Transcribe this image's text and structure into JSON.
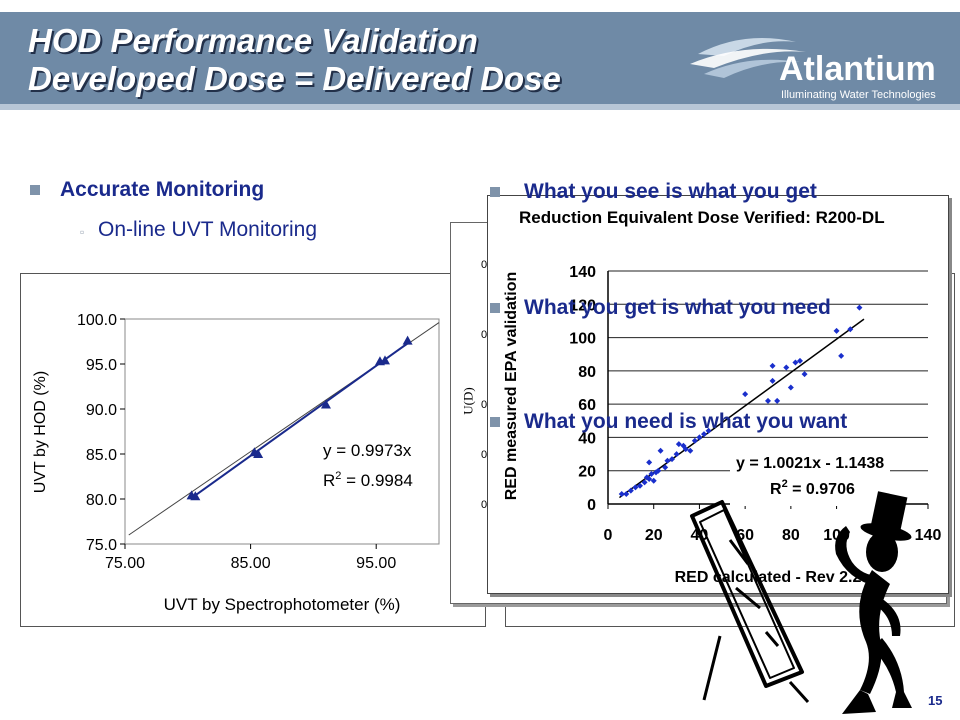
{
  "slide": {
    "title_line1": "HOD Performance Validation",
    "title_line2": "Developed Dose = Delivered Dose",
    "logo": {
      "name": "Atlantium",
      "tagline": "Illuminating Water Technologies"
    },
    "left_bullet": "Accurate Monitoring",
    "left_sub_bullet": "On-line UVT Monitoring",
    "right_bullets": [
      "What you see is what you get",
      "What you get is what you need",
      "What you need is what you want"
    ],
    "page_number": "15",
    "back_panel_axis_fragment": "U(D)",
    "back_panel_xlabel_fragment": "(%)",
    "back_panel_tick_fragment": "0."
  },
  "chart_data": [
    {
      "type": "scatter",
      "xlabel": "UVT by Spectrophotometer (%)",
      "ylabel": "UVT by HOD (%)",
      "xlim": [
        75,
        100
      ],
      "ylim": [
        75,
        100
      ],
      "x_ticks": [
        "75.00",
        "85.00",
        "95.00"
      ],
      "y_ticks": [
        "75.0",
        "80.0",
        "85.0",
        "90.0",
        "95.0",
        "100.0"
      ],
      "grid": false,
      "equation": "y = 0.9973x",
      "r2_label": "R",
      "r2_value": " = 0.9984",
      "points": [
        {
          "x": 80.3,
          "y": 80.4
        },
        {
          "x": 80.6,
          "y": 80.3
        },
        {
          "x": 85.3,
          "y": 85.2
        },
        {
          "x": 85.6,
          "y": 85.0
        },
        {
          "x": 91.0,
          "y": 90.5
        },
        {
          "x": 95.3,
          "y": 95.3
        },
        {
          "x": 95.7,
          "y": 95.4
        },
        {
          "x": 97.5,
          "y": 97.6
        }
      ]
    },
    {
      "type": "scatter",
      "title": "Reduction Equivalent Dose Verified: R200-DL",
      "xlabel": "RED calculated - Rev 2.2",
      "ylabel": "RED measured EPA validation",
      "xlim": [
        0,
        140
      ],
      "ylim": [
        0,
        140
      ],
      "x_ticks": [
        "0",
        "20",
        "40",
        "60",
        "80",
        "100",
        "120",
        "140"
      ],
      "y_ticks": [
        "0",
        "20",
        "40",
        "60",
        "80",
        "100",
        "120",
        "140"
      ],
      "grid": true,
      "equation": "y = 1.0021x - 1.1438",
      "r2_label": "R",
      "r2_value": " = 0.9706",
      "points": [
        {
          "x": 6,
          "y": 6
        },
        {
          "x": 8,
          "y": 6
        },
        {
          "x": 10,
          "y": 8
        },
        {
          "x": 12,
          "y": 10
        },
        {
          "x": 14,
          "y": 11
        },
        {
          "x": 16,
          "y": 13
        },
        {
          "x": 17,
          "y": 16
        },
        {
          "x": 18,
          "y": 15
        },
        {
          "x": 18,
          "y": 25
        },
        {
          "x": 19,
          "y": 18
        },
        {
          "x": 20,
          "y": 14
        },
        {
          "x": 21,
          "y": 19
        },
        {
          "x": 22,
          "y": 20
        },
        {
          "x": 23,
          "y": 32
        },
        {
          "x": 25,
          "y": 22
        },
        {
          "x": 26,
          "y": 26
        },
        {
          "x": 28,
          "y": 27
        },
        {
          "x": 30,
          "y": 30
        },
        {
          "x": 31,
          "y": 36
        },
        {
          "x": 33,
          "y": 35
        },
        {
          "x": 34,
          "y": 33
        },
        {
          "x": 36,
          "y": 32
        },
        {
          "x": 38,
          "y": 38
        },
        {
          "x": 40,
          "y": 40
        },
        {
          "x": 42,
          "y": 42
        },
        {
          "x": 44,
          "y": 44
        },
        {
          "x": 60,
          "y": 66
        },
        {
          "x": 70,
          "y": 62
        },
        {
          "x": 72,
          "y": 74
        },
        {
          "x": 74,
          "y": 62
        },
        {
          "x": 72,
          "y": 83
        },
        {
          "x": 78,
          "y": 82
        },
        {
          "x": 80,
          "y": 70
        },
        {
          "x": 82,
          "y": 85
        },
        {
          "x": 84,
          "y": 86
        },
        {
          "x": 86,
          "y": 78
        },
        {
          "x": 100,
          "y": 104
        },
        {
          "x": 102,
          "y": 89
        },
        {
          "x": 106,
          "y": 105
        },
        {
          "x": 110,
          "y": 118
        }
      ]
    }
  ]
}
